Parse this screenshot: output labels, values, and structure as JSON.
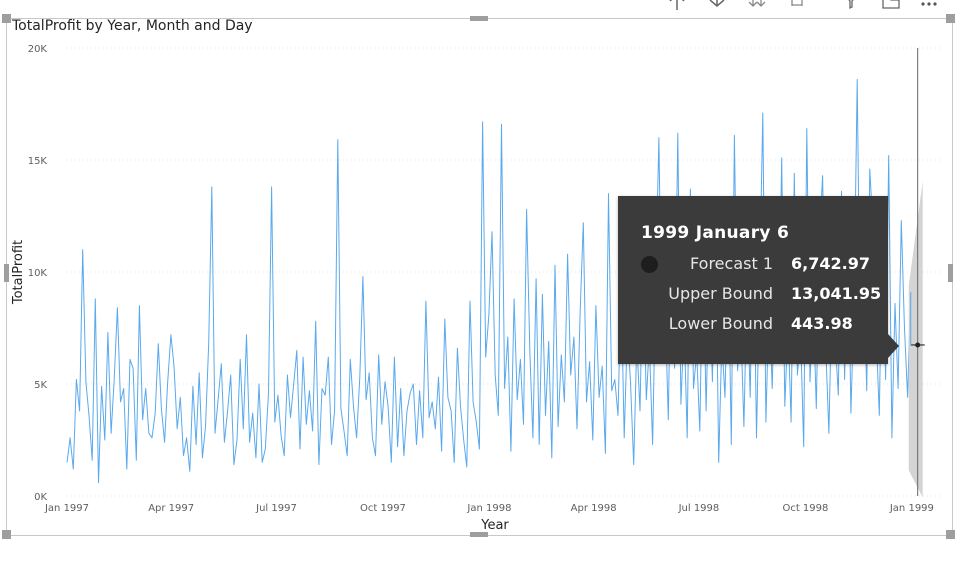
{
  "colors": {
    "series": "#5aa9ec",
    "forecast_band": "#cfcfcf",
    "tooltip_bg": "#3b3b3b"
  },
  "toolbar": {
    "icons": [
      "drill-up-icon",
      "drill-down-icon",
      "expand-next-level-icon",
      "expand-all-icon",
      "filter-icon",
      "focus-mode-icon",
      "more-options-icon"
    ]
  },
  "chart_data": {
    "type": "line",
    "title": "TotalProfit by Year, Month and Day",
    "xlabel": "Year",
    "ylabel": "TotalProfit",
    "x_ticks": [
      "Jan 1997",
      "Apr 1997",
      "Jul 1997",
      "Oct 1997",
      "Jan 1998",
      "Apr 1998",
      "Jul 1998",
      "Oct 1998",
      "Jan 1999"
    ],
    "y_ticks": [
      "0K",
      "5K",
      "10K",
      "15K",
      "20K"
    ],
    "ylim": [
      0,
      20000
    ],
    "xlim": [
      "1997-01-01",
      "1999-01-08"
    ],
    "grid": true,
    "legend": "none",
    "series": [
      {
        "start": "1997-01-01",
        "end": "1998-12-31",
        "values": [
          1500,
          2600,
          1200,
          5200,
          3800,
          11000,
          5100,
          3600,
          1600,
          8800,
          600,
          4900,
          2500,
          7300,
          2800,
          5200,
          8400,
          4200,
          4800,
          1200,
          6100,
          5700,
          1600,
          8500,
          3400,
          4800,
          2800,
          2600,
          3700,
          6800,
          3900,
          2400,
          5100,
          7200,
          5800,
          3000,
          4400,
          1800,
          2600,
          1100,
          4900,
          2300,
          5500,
          1700,
          3100,
          6800,
          13800,
          2800,
          4300,
          5900,
          2400,
          3800,
          5400,
          1400,
          2500,
          6100,
          3000,
          7200,
          2400,
          3700,
          1700,
          5000,
          1500,
          2100,
          4600,
          13800,
          3300,
          4500,
          2700,
          1800,
          5400,
          3500,
          5000,
          6500,
          2100,
          6200,
          3200,
          4700,
          2900,
          7800,
          1400,
          4800,
          4500,
          6200,
          2300,
          3800,
          15900,
          3900,
          2900,
          1800,
          6100,
          4000,
          2600,
          5300,
          9800,
          4300,
          5500,
          2600,
          1800,
          6300,
          3200,
          5100,
          4000,
          1500,
          6200,
          2200,
          4800,
          1800,
          3800,
          4600,
          5000,
          2300,
          4700,
          2600,
          8700,
          3500,
          4200,
          3000,
          5300,
          2000,
          7900,
          4400,
          3800,
          1500,
          6600,
          4000,
          2500,
          1300,
          8700,
          4200,
          3300,
          2100,
          16700,
          6200,
          8100,
          11800,
          5400,
          3600,
          16600,
          4800,
          7100,
          2000,
          8800,
          4300,
          6100,
          3200,
          12800,
          6500,
          2600,
          9700,
          2300,
          9000,
          3600,
          6900,
          1700,
          10300,
          3100,
          6300,
          4200,
          10800,
          5400,
          7100,
          3000,
          8300,
          12200,
          4200,
          6000,
          2500,
          8500,
          4400,
          5800,
          1900,
          13500,
          4700,
          5200,
          3600,
          9500,
          2600,
          7400,
          5100,
          1400,
          6900,
          3800,
          10700,
          4300,
          6800,
          2300,
          9500,
          16000,
          6100,
          8300,
          3400,
          12500,
          5700,
          16200,
          4100,
          7700,
          2600,
          13700,
          4800,
          6400,
          2900,
          11300,
          3800,
          10300,
          5100,
          12500,
          1500,
          6900,
          4400,
          11000,
          2300,
          16100,
          5600,
          7800,
          3100,
          9400,
          4400,
          12800,
          2600,
          9500,
          17100,
          3300,
          8800,
          4800,
          10500,
          6300,
          15100,
          4000,
          7700,
          3300,
          14400,
          5400,
          7200,
          2200,
          16400,
          5100,
          8900,
          3900,
          11400,
          14300,
          6700,
          2800,
          9300,
          7000,
          4500,
          13600,
          5200,
          12700,
          3700,
          8700,
          18600,
          6200,
          10500,
          4700,
          14600,
          11900,
          7400,
          3600,
          12100,
          5200,
          15200,
          2600,
          8600,
          4800,
          12300,
          7600,
          4400,
          9100
        ]
      }
    ],
    "forecast": {
      "x": "1999-01-06",
      "value": 6742.97,
      "upper": 13041.95,
      "lower": 443.98
    },
    "tooltip": {
      "title": "1999 January 6",
      "rows": [
        {
          "label": "Forecast 1",
          "value": "6,742.97"
        },
        {
          "label": "Upper Bound",
          "value": "13,041.95"
        },
        {
          "label": "Lower Bound",
          "value": "443.98"
        }
      ]
    }
  }
}
